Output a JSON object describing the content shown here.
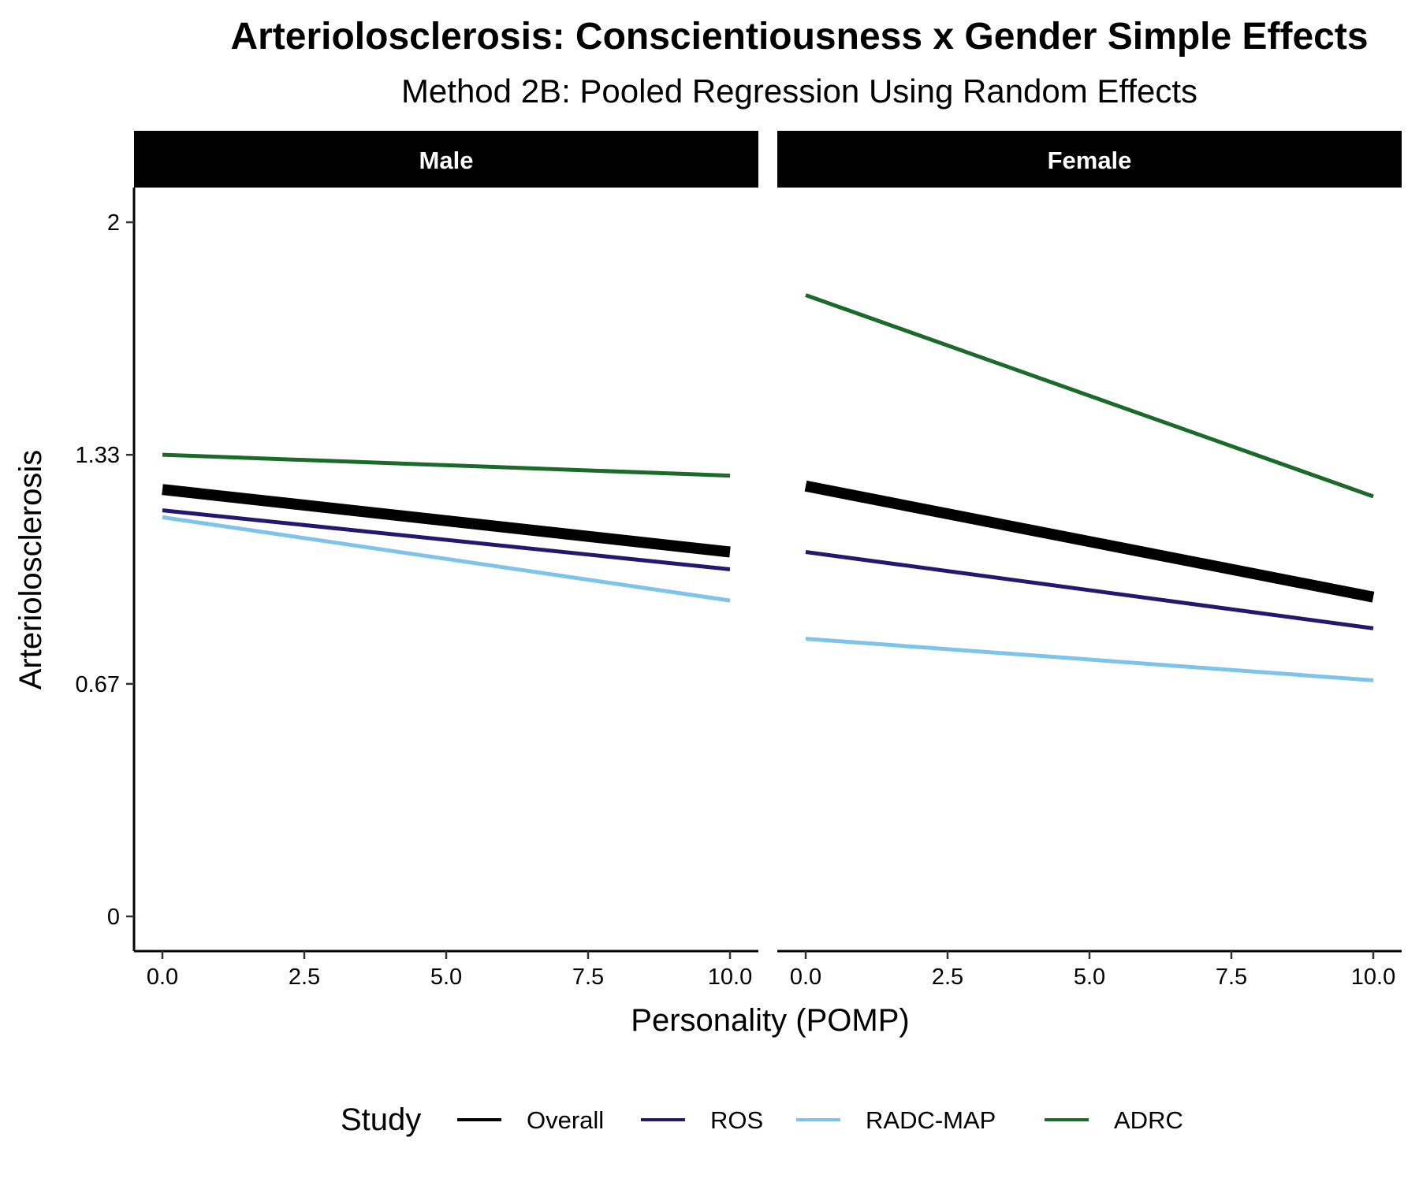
{
  "chart_data": {
    "type": "line",
    "title": "Arteriolosclerosis: Conscientiousness x Gender Simple Effects",
    "subtitle": "Method 2B: Pooled Regression Using Random Effects",
    "xlabel": "Personality (POMP)",
    "ylabel": "Arteriolosclerosis",
    "xlim": [
      -0.5,
      10.5
    ],
    "ylim": [
      -0.1,
      2.1
    ],
    "x_ticks": [
      0,
      2.5,
      5,
      7.5,
      10
    ],
    "x_tick_labels": [
      "0.0",
      "2.5",
      "5.0",
      "7.5",
      "10.0"
    ],
    "y_ticks": [
      0,
      0.67,
      1.33,
      2
    ],
    "y_tick_labels": [
      "0",
      "0.67",
      "1.33",
      "2"
    ],
    "grid": false,
    "legend": {
      "title": "Study",
      "position": "bottom",
      "entries": [
        "Overall",
        "ROS",
        "RADC-MAP",
        "ADRC"
      ]
    },
    "series_colors": {
      "Overall": "#000000",
      "ROS": "#24186e",
      "RADC-MAP": "#7dc3ea",
      "ADRC": "#1b6a2a"
    },
    "series_widths": {
      "Overall": "thick",
      "ROS": "normal",
      "RADC-MAP": "normal",
      "ADRC": "normal"
    },
    "panels": [
      {
        "label": "Male",
        "x": [
          0,
          10
        ],
        "series": [
          {
            "name": "Overall",
            "values": [
              1.23,
              1.05
            ]
          },
          {
            "name": "ROS",
            "values": [
              1.17,
              1.0
            ]
          },
          {
            "name": "RADC-MAP",
            "values": [
              1.15,
              0.91
            ]
          },
          {
            "name": "ADRC",
            "values": [
              1.33,
              1.27
            ]
          }
        ]
      },
      {
        "label": "Female",
        "x": [
          0,
          10
        ],
        "series": [
          {
            "name": "Overall",
            "values": [
              1.24,
              0.92
            ]
          },
          {
            "name": "ROS",
            "values": [
              1.05,
              0.83
            ]
          },
          {
            "name": "RADC-MAP",
            "values": [
              0.8,
              0.68
            ]
          },
          {
            "name": "ADRC",
            "values": [
              1.79,
              1.21
            ]
          }
        ]
      }
    ]
  }
}
